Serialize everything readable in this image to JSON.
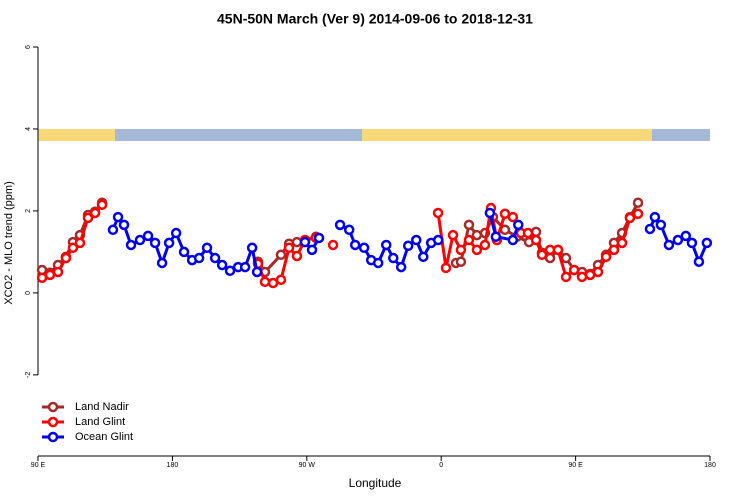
{
  "chart_data": {
    "type": "line",
    "title": "45N-50N March (Ver 9)   2014-09-06 to 2018-12-31",
    "x_label": "Longitude",
    "y_label": "XCO2 - MLO trend (ppm)",
    "xlim": [
      90,
      540
    ],
    "ylim": [
      -3.98,
      6.4
    ],
    "xticks": [
      {
        "value": 90,
        "label": "90 E"
      },
      180,
      {
        "value": 270,
        "label": "90 W"
      },
      {
        "value": 360,
        "label": "0"
      },
      {
        "value": 450,
        "label": "90 E"
      },
      {
        "value": 540,
        "label": "180"
      }
    ],
    "yticks": [
      -2,
      0,
      2,
      4,
      6
    ],
    "legend": "bottom-left",
    "series": [
      {
        "name": "Land Nadir",
        "color": "#a52a2a",
        "x": [
          92.7,
          98.0,
          103.4,
          108.7,
          113.4,
          118.1,
          123.5,
          128.2,
          132.9,
          null,
          237.3,
          242.0,
          252.7,
          258.1,
          263.4,
          276.2,
          null,
          369.9,
          373.2,
          378.6,
          383.9,
          389.3,
          394.7,
          402.7,
          410.7,
          418.8,
          423.5,
          427.5,
          432.9,
          438.2,
          443.6,
          449.0,
          454.3,
          459.7,
          465.0,
          470.4,
          475.7,
          481.1,
          486.4,
          491.8
        ],
        "values": [
          0.56,
          0.49,
          0.68,
          0.88,
          1.24,
          1.41,
          1.9,
          1.98,
          2.2,
          null,
          0.76,
          0.51,
          0.93,
          1.2,
          1.24,
          1.37,
          null,
          0.73,
          0.76,
          1.66,
          1.41,
          1.46,
          1.85,
          1.54,
          1.37,
          1.24,
          1.49,
          0.98,
          0.85,
          1.05,
          0.85,
          0.56,
          0.51,
          0.46,
          0.68,
          0.93,
          1.22,
          1.46,
          1.85,
          2.2
        ]
      },
      {
        "name": "Land Glint",
        "color": "#ff0000",
        "x": [
          92.7,
          98.0,
          103.4,
          108.7,
          113.4,
          118.1,
          123.5,
          128.2,
          132.9,
          null,
          237.3,
          242.0,
          247.4,
          252.7,
          258.1,
          263.4,
          268.8,
          276.2,
          null,
          287.6,
          null,
          357.9,
          363.2,
          367.9,
          373.2,
          378.6,
          383.9,
          389.3,
          393.3,
          397.3,
          402.7,
          408.0,
          413.4,
          418.1,
          423.5,
          427.5,
          432.9,
          438.2,
          443.6,
          449.0,
          454.3,
          459.7,
          465.0,
          470.4,
          475.7,
          481.1,
          486.4,
          491.8
        ],
        "values": [
          0.37,
          0.44,
          0.51,
          0.85,
          1.1,
          1.22,
          1.83,
          1.95,
          2.15,
          null,
          0.71,
          0.27,
          0.24,
          0.32,
          1.1,
          0.9,
          1.29,
          1.34,
          null,
          1.17,
          null,
          1.95,
          0.61,
          1.41,
          1.05,
          1.29,
          1.05,
          1.17,
          2.07,
          1.29,
          1.93,
          1.85,
          1.46,
          1.46,
          1.29,
          0.93,
          1.05,
          1.05,
          0.39,
          0.56,
          0.39,
          0.44,
          0.51,
          0.88,
          1.05,
          1.22,
          1.83,
          1.93
        ]
      },
      {
        "name": "Ocean Glint",
        "color": "#0000ee",
        "x": [
          140.2,
          143.6,
          147.6,
          152.3,
          158.3,
          163.7,
          168.4,
          173.1,
          177.8,
          182.5,
          187.8,
          193.2,
          197.9,
          203.2,
          208.6,
          213.3,
          218.6,
          224.0,
          228.7,
          233.4,
          236.7,
          null,
          268.8,
          273.5,
          278.2,
          null,
          292.3,
          298.4,
          302.4,
          308.4,
          313.1,
          317.8,
          323.2,
          327.9,
          333.2,
          337.9,
          343.3,
          348.0,
          353.3,
          358.0,
          null,
          392.6,
          396.6,
          408.0,
          411.6,
          null,
          499.8,
          503.1,
          507.1,
          512.5,
          518.5,
          523.8,
          527.9,
          532.6,
          537.9
        ],
        "values": [
          1.54,
          1.85,
          1.66,
          1.17,
          1.29,
          1.39,
          1.22,
          0.73,
          1.22,
          1.46,
          1.0,
          0.8,
          0.85,
          1.1,
          0.85,
          0.68,
          0.54,
          0.63,
          0.63,
          1.1,
          0.51,
          null,
          1.24,
          1.05,
          1.34,
          null,
          1.66,
          1.54,
          1.17,
          1.1,
          0.8,
          0.73,
          1.17,
          0.85,
          0.63,
          1.15,
          1.29,
          0.88,
          1.22,
          1.29,
          null,
          1.95,
          1.37,
          1.29,
          1.66,
          null,
          1.56,
          1.85,
          1.66,
          1.17,
          1.29,
          1.39,
          1.22,
          0.76,
          1.22
        ]
      }
    ]
  }
}
